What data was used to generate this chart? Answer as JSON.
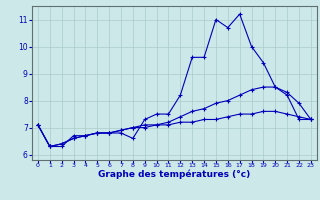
{
  "xlabel": "Graphe des températures (°c)",
  "xlim": [
    -0.5,
    23.5
  ],
  "ylim": [
    5.8,
    11.5
  ],
  "yticks": [
    6,
    7,
    8,
    9,
    10,
    11
  ],
  "xticks": [
    0,
    1,
    2,
    3,
    4,
    5,
    6,
    7,
    8,
    9,
    10,
    11,
    12,
    13,
    14,
    15,
    16,
    17,
    18,
    19,
    20,
    21,
    22,
    23
  ],
  "bg_color": "#cce8e8",
  "grid_color": "#aacaca",
  "line_color": "#0000bb",
  "lines": [
    {
      "x": [
        0,
        1,
        2,
        3,
        4,
        5,
        6,
        7,
        8,
        9,
        10,
        11,
        12,
        13,
        14,
        15,
        16,
        17,
        18,
        19,
        20,
        21,
        22,
        23
      ],
      "y": [
        7.1,
        6.3,
        6.3,
        6.7,
        6.7,
        6.8,
        6.8,
        6.8,
        6.6,
        7.3,
        7.5,
        7.5,
        8.2,
        9.6,
        9.6,
        11.0,
        10.7,
        11.2,
        10.0,
        9.4,
        8.5,
        8.2,
        7.3,
        7.3
      ]
    },
    {
      "x": [
        0,
        1,
        2,
        3,
        4,
        5,
        6,
        7,
        8,
        9,
        10,
        11,
        12,
        13,
        14,
        15,
        16,
        17,
        18,
        19,
        20,
        21,
        22,
        23
      ],
      "y": [
        7.1,
        6.3,
        6.4,
        6.6,
        6.7,
        6.8,
        6.8,
        6.9,
        7.0,
        7.1,
        7.1,
        7.2,
        7.4,
        7.6,
        7.7,
        7.9,
        8.0,
        8.2,
        8.4,
        8.5,
        8.5,
        8.3,
        7.9,
        7.3
      ]
    },
    {
      "x": [
        0,
        1,
        2,
        3,
        4,
        5,
        6,
        7,
        8,
        9,
        10,
        11,
        12,
        13,
        14,
        15,
        16,
        17,
        18,
        19,
        20,
        21,
        22,
        23
      ],
      "y": [
        7.1,
        6.3,
        6.4,
        6.6,
        6.7,
        6.8,
        6.8,
        6.9,
        7.0,
        7.0,
        7.1,
        7.1,
        7.2,
        7.2,
        7.3,
        7.3,
        7.4,
        7.5,
        7.5,
        7.6,
        7.6,
        7.5,
        7.4,
        7.3
      ]
    }
  ]
}
